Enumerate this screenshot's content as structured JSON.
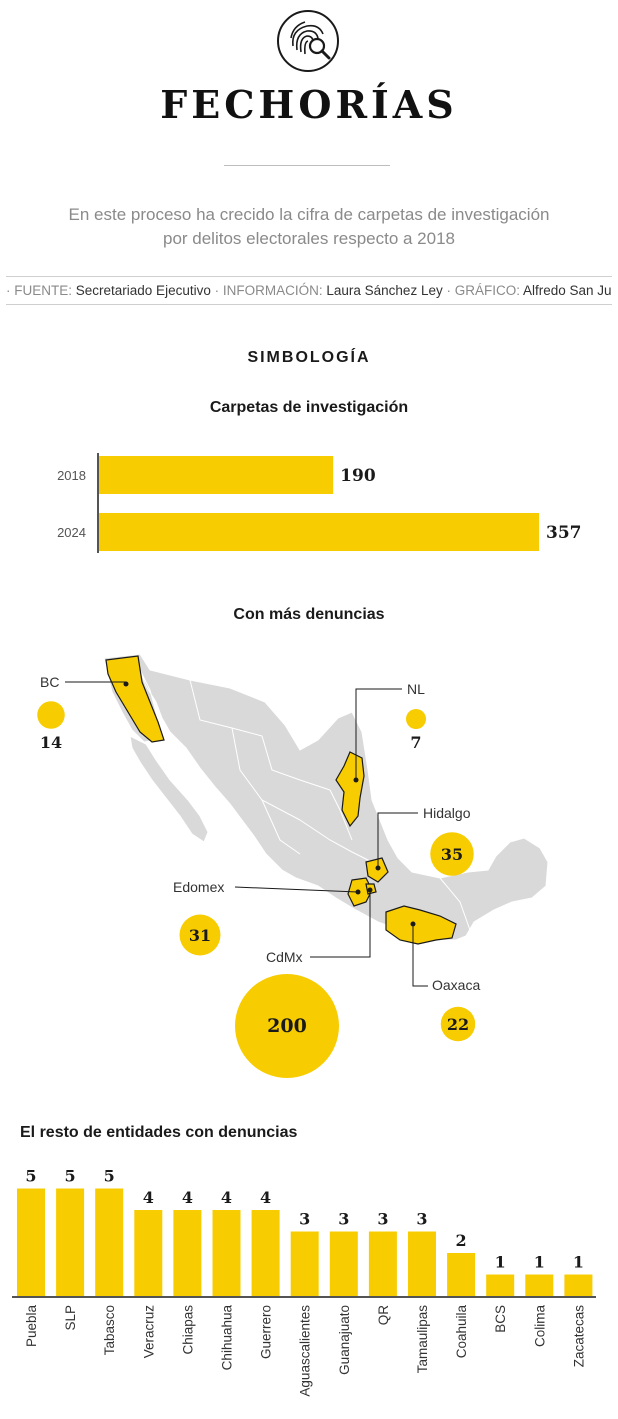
{
  "header": {
    "logo_icon": "fingerprint-magnifier-icon",
    "title": "FECHORÍAS",
    "subtitle": "En este proceso ha crecido la cifra de carpetas de investigación por delitos electorales respecto a 2018",
    "credits": {
      "source_key": "· FUENTE:",
      "source_val": "Secretariado Ejecutivo",
      "info_key": "· INFORMACIÓN:",
      "info_val": "Laura Sánchez Ley",
      "graphic_key": "· GRÁFICO:",
      "graphic_val": "Alfredo San Juan"
    }
  },
  "legend_heading": "SIMBOLOGÍA",
  "colors": {
    "accent": "#f7cc00",
    "map_fill": "#d9d9d9",
    "map_border": "#ffffff",
    "text": "#1a1a1a"
  },
  "chart_data": [
    {
      "type": "bar",
      "orientation": "horizontal",
      "title": "Carpetas de investigación",
      "categories": [
        "2018",
        "2024"
      ],
      "values": [
        190,
        357
      ]
    },
    {
      "type": "bubble-map",
      "title": "Con más denuncias",
      "points": [
        {
          "label": "BC",
          "value": 14
        },
        {
          "label": "NL",
          "value": 7
        },
        {
          "label": "Hidalgo",
          "value": 35
        },
        {
          "label": "Edomex",
          "value": 31
        },
        {
          "label": "CdMx",
          "value": 200
        },
        {
          "label": "Oaxaca",
          "value": 22
        }
      ]
    },
    {
      "type": "bar",
      "title": "El resto de entidades con denuncias",
      "categories": [
        "Puebla",
        "SLP",
        "Tabasco",
        "Veracruz",
        "Chiapas",
        "Chihuahua",
        "Guerrero",
        "Aguascalientes",
        "Guanajuato",
        "QR",
        "Tamaulipas",
        "Coahuila",
        "BCS",
        "Colima",
        "Zacatecas"
      ],
      "values": [
        5,
        5,
        5,
        4,
        4,
        4,
        4,
        3,
        3,
        3,
        3,
        2,
        1,
        1,
        1
      ]
    }
  ]
}
